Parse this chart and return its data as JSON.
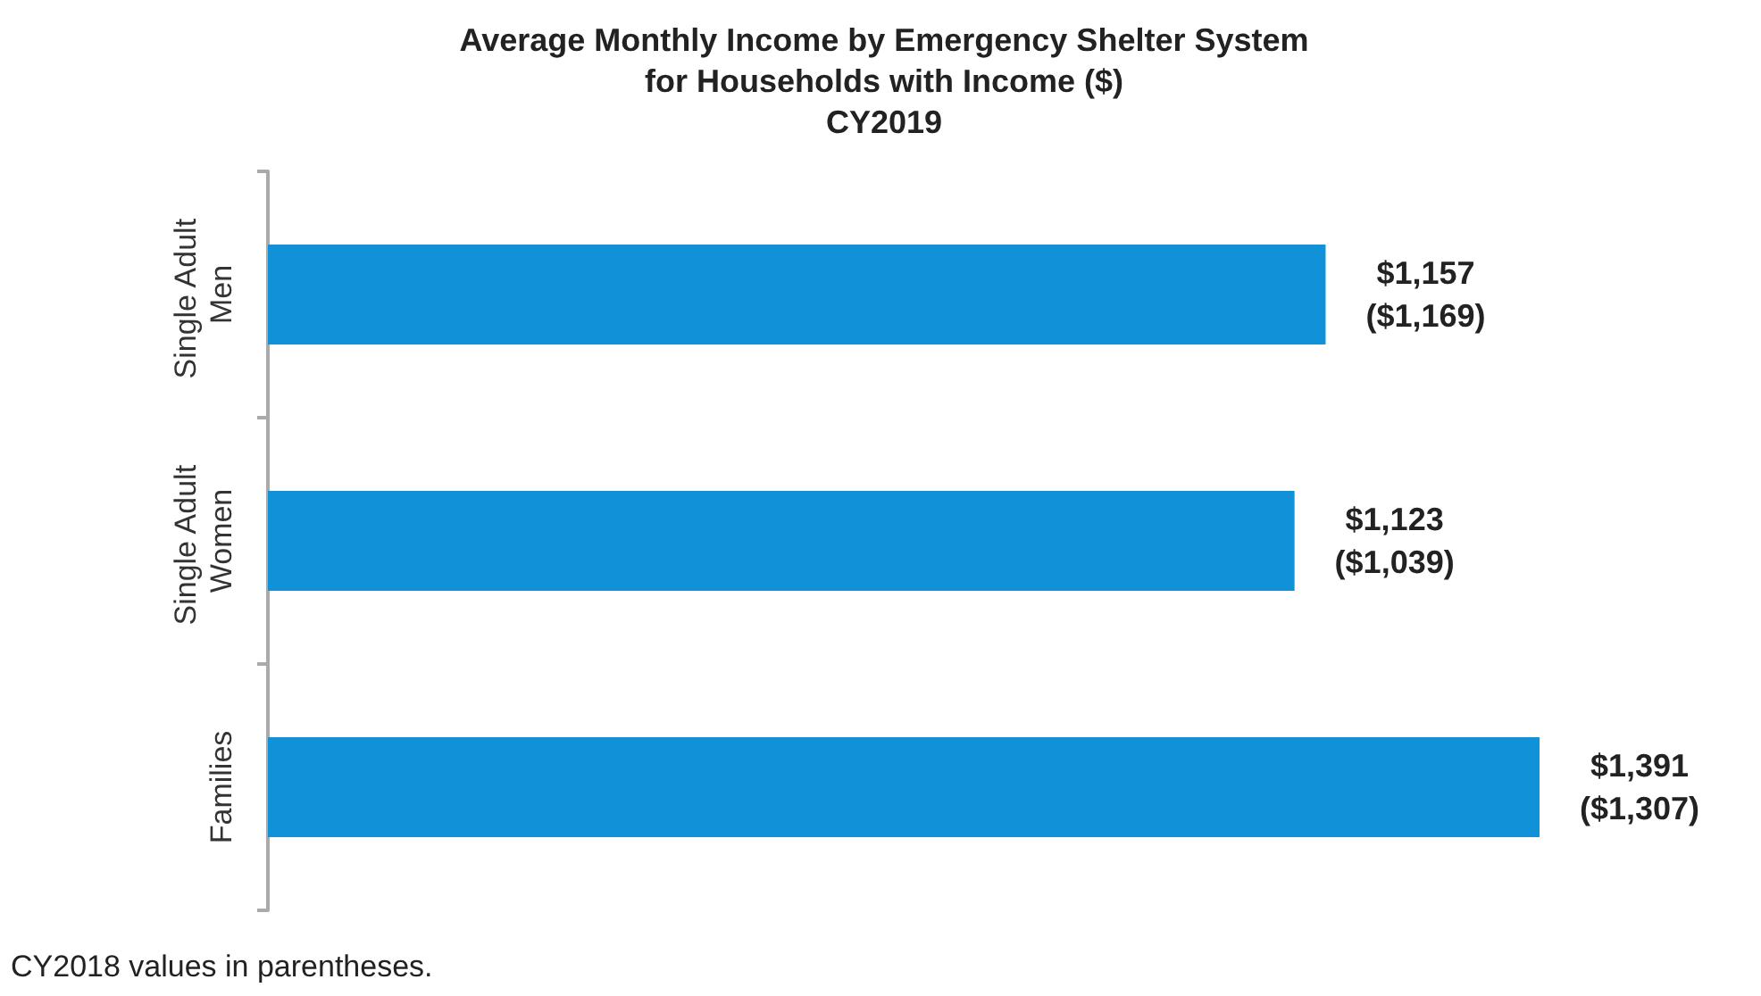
{
  "chart_data": {
    "type": "bar",
    "orientation": "horizontal",
    "title": "Average Monthly Income by Emergency Shelter System\nfor Households with Income ($)\nCY2019",
    "categories": [
      "Single Adult Men",
      "Single Adult Women",
      "Families"
    ],
    "values": [
      1157,
      1123,
      1391
    ],
    "value_labels": [
      "$1,157\n($1,169)",
      "$1,123\n($1,039)",
      "$1,391\n($1,307)"
    ],
    "color": "#1191d8",
    "annotations": [
      "CY2018 values in parentheses."
    ]
  }
}
